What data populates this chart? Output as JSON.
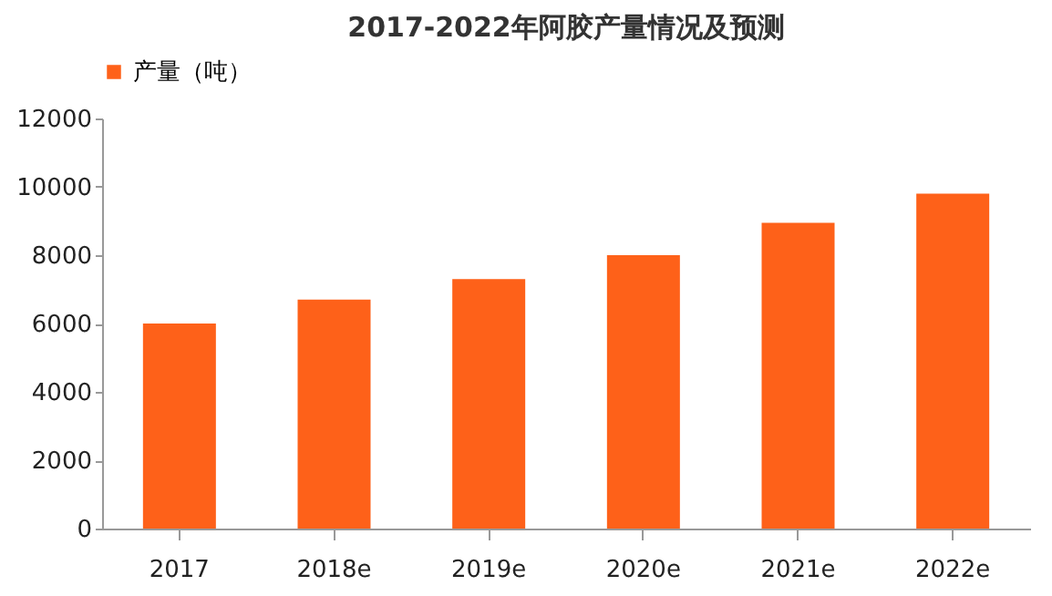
{
  "chart_data": {
    "type": "bar",
    "title": "2017-2022年阿胶产量情况及预测",
    "categories": [
      "2017",
      "2018e",
      "2019e",
      "2020e",
      "2021e",
      "2022e"
    ],
    "series": [
      {
        "name": "产量（吨）",
        "color": "#fe6119",
        "values": [
          6000,
          6700,
          7300,
          8000,
          8950,
          9800
        ]
      }
    ],
    "ylim": [
      0,
      12000
    ],
    "yticks": [
      0,
      2000,
      4000,
      6000,
      8000,
      10000,
      12000
    ],
    "grid": false,
    "legend": "top"
  }
}
